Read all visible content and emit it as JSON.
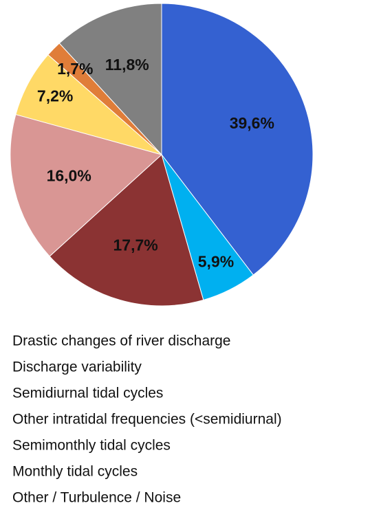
{
  "chart_data": {
    "type": "pie",
    "categories": [
      "Drastic changes of river discharge",
      "Discharge variability",
      "Semidiurnal tidal cycles",
      "Other intratidal frequencies (<semidiurnal)",
      "Semimonthly tidal cycles",
      "Monthly tidal cycles",
      "Other / Turbulence / Noise"
    ],
    "values": [
      39.6,
      5.9,
      17.7,
      16.0,
      7.2,
      1.7,
      11.8
    ],
    "value_labels": [
      "39,6%",
      "5,9%",
      "17,7%",
      "16,0%",
      "7,2%",
      "1,7%",
      "11,8%"
    ],
    "colors": [
      "#3461d1",
      "#00b0f0",
      "#8b3333",
      "#d99694",
      "#ffd966",
      "#e07d39",
      "#808080"
    ]
  }
}
